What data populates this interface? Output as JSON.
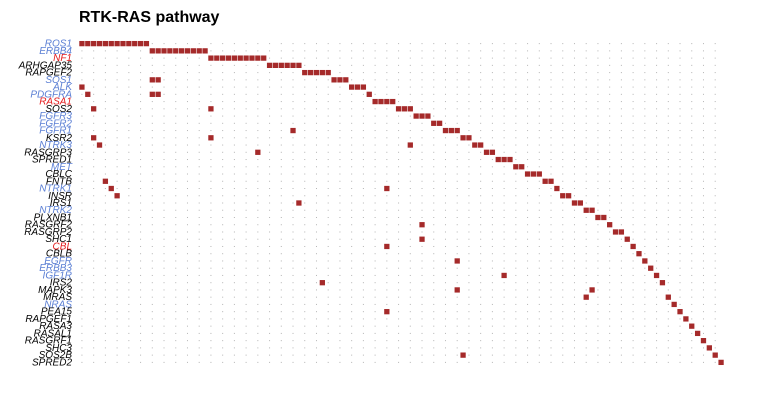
{
  "chart_data": {
    "type": "heatmap",
    "title": "RTK-RAS pathway",
    "colors": {
      "mutation": "#a52a2a",
      "oncogene_label": "#5b7fd4",
      "tsg_label": "#e41a1c",
      "other_label": "#000000",
      "grid_dot": "#b4b4b4"
    },
    "n_samples": 110,
    "genes": [
      {
        "name": "ROS1",
        "role": "oncogene",
        "samples": [
          0,
          1,
          2,
          3,
          4,
          5,
          6,
          7,
          8,
          9,
          10,
          11
        ]
      },
      {
        "name": "ERBB4",
        "role": "oncogene",
        "samples": [
          12,
          13,
          14,
          15,
          16,
          17,
          18,
          19,
          20,
          21
        ]
      },
      {
        "name": "NF1",
        "role": "tsg",
        "samples": [
          22,
          23,
          24,
          25,
          26,
          27,
          28,
          29,
          30,
          31
        ]
      },
      {
        "name": "ARHGAP35",
        "role": "other",
        "samples": [
          32,
          33,
          34,
          35,
          36,
          37
        ]
      },
      {
        "name": "RAPGEF2",
        "role": "other",
        "samples": [
          38,
          39,
          40,
          41,
          42
        ]
      },
      {
        "name": "SOS1",
        "role": "oncogene",
        "samples": [
          12,
          13,
          43,
          44,
          45
        ]
      },
      {
        "name": "ALK",
        "role": "oncogene",
        "samples": [
          0,
          46,
          47,
          48
        ]
      },
      {
        "name": "PDGFRA",
        "role": "oncogene",
        "samples": [
          1,
          12,
          13,
          49
        ]
      },
      {
        "name": "RASA1",
        "role": "tsg",
        "samples": [
          50,
          51,
          52,
          53
        ]
      },
      {
        "name": "SOS2",
        "role": "other",
        "samples": [
          2,
          22,
          54,
          55,
          56
        ]
      },
      {
        "name": "FGFR3",
        "role": "oncogene",
        "samples": [
          57,
          58,
          59
        ]
      },
      {
        "name": "FGFR2",
        "role": "oncogene",
        "samples": [
          60,
          61
        ]
      },
      {
        "name": "FGFR1",
        "role": "oncogene",
        "samples": [
          36,
          62,
          63,
          64
        ]
      },
      {
        "name": "KSR2",
        "role": "other",
        "samples": [
          2,
          22,
          65,
          66
        ]
      },
      {
        "name": "NTRK3",
        "role": "oncogene",
        "samples": [
          3,
          56,
          67,
          68
        ]
      },
      {
        "name": "RASGRP3",
        "role": "other",
        "samples": [
          30,
          69,
          70
        ]
      },
      {
        "name": "SPRED1",
        "role": "other",
        "samples": [
          71,
          72,
          73
        ]
      },
      {
        "name": "MET",
        "role": "oncogene",
        "samples": [
          74,
          75
        ]
      },
      {
        "name": "CBLC",
        "role": "other",
        "samples": [
          76,
          77,
          78
        ]
      },
      {
        "name": "FNTB",
        "role": "other",
        "samples": [
          4,
          79,
          80
        ]
      },
      {
        "name": "NTRK1",
        "role": "oncogene",
        "samples": [
          5,
          52,
          81
        ]
      },
      {
        "name": "INSR",
        "role": "other",
        "samples": [
          6,
          82,
          83
        ]
      },
      {
        "name": "IRS1",
        "role": "other",
        "samples": [
          37,
          84,
          85
        ]
      },
      {
        "name": "NTRK2",
        "role": "oncogene",
        "samples": [
          86,
          87
        ]
      },
      {
        "name": "PLXNB1",
        "role": "other",
        "samples": [
          88,
          89
        ]
      },
      {
        "name": "RASGRF2",
        "role": "other",
        "samples": [
          58,
          90
        ]
      },
      {
        "name": "RASGRP2",
        "role": "other",
        "samples": [
          91,
          92
        ]
      },
      {
        "name": "SHC1",
        "role": "other",
        "samples": [
          58,
          93
        ]
      },
      {
        "name": "CBL",
        "role": "tsg",
        "samples": [
          52,
          94
        ]
      },
      {
        "name": "CBLB",
        "role": "other",
        "samples": [
          95
        ]
      },
      {
        "name": "EGFR",
        "role": "oncogene",
        "samples": [
          64,
          96
        ]
      },
      {
        "name": "ERBB3",
        "role": "oncogene",
        "samples": [
          97
        ]
      },
      {
        "name": "IGF1R",
        "role": "oncogene",
        "samples": [
          72,
          98
        ]
      },
      {
        "name": "IRS2",
        "role": "other",
        "samples": [
          41,
          99
        ]
      },
      {
        "name": "MAPK3",
        "role": "other",
        "samples": [
          64,
          87
        ]
      },
      {
        "name": "MRAS",
        "role": "other",
        "samples": [
          86,
          100
        ]
      },
      {
        "name": "NRAS",
        "role": "oncogene",
        "samples": [
          101
        ]
      },
      {
        "name": "PEA15",
        "role": "other",
        "samples": [
          52,
          102
        ]
      },
      {
        "name": "RAPGEF1",
        "role": "other",
        "samples": [
          103
        ]
      },
      {
        "name": "RASA3",
        "role": "other",
        "samples": [
          104
        ]
      },
      {
        "name": "RASAL1",
        "role": "other",
        "samples": [
          105
        ]
      },
      {
        "name": "RASGRF1",
        "role": "other",
        "samples": [
          106
        ]
      },
      {
        "name": "SHC3",
        "role": "other",
        "samples": [
          107
        ]
      },
      {
        "name": "SOS2B",
        "role": "other",
        "samples": [
          65,
          108
        ]
      },
      {
        "name": "SPRED2",
        "role": "other",
        "samples": [
          109
        ]
      }
    ]
  }
}
